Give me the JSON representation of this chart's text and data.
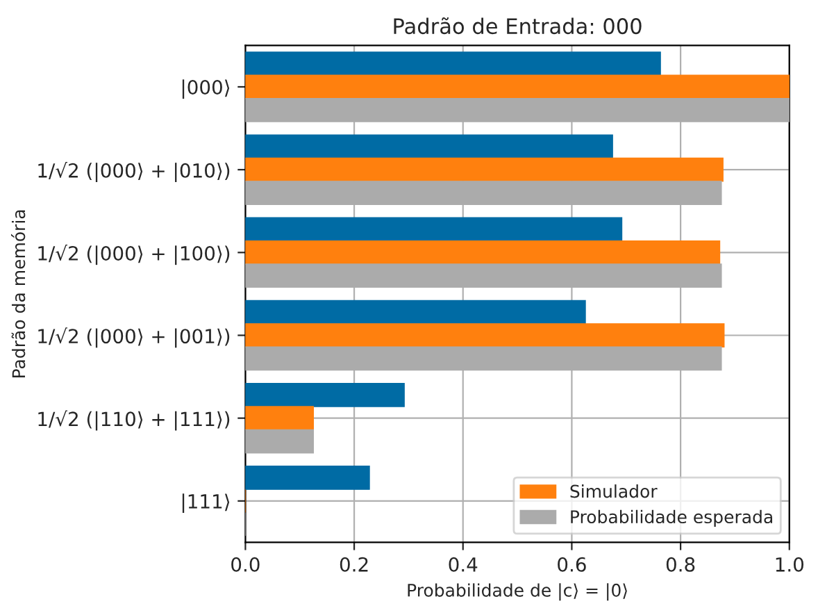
{
  "chart_data": {
    "type": "bar",
    "orientation": "horizontal",
    "title": "Padrão de Entrada: 000",
    "xlabel": "Probabilidade de |c⟩ = |0⟩",
    "ylabel": "Padrão da memória",
    "categories": [
      "|000⟩",
      "1/√2 (|000⟩ + |010⟩)",
      "1/√2 (|000⟩ + |100⟩)",
      "1/√2 (|000⟩ + |001⟩)",
      "1/√2 (|110⟩ + |111⟩)",
      "|111⟩"
    ],
    "series": [
      {
        "color": "#006ba4",
        "values": [
          0.763,
          0.675,
          0.692,
          0.625,
          0.292,
          0.228
        ]
      },
      {
        "name": "Simulador",
        "color": "#ff800e",
        "values": [
          1.0,
          0.878,
          0.872,
          0.88,
          0.125,
          0.0
        ]
      },
      {
        "name": "Probabilidade esperada",
        "color": "#ababab",
        "values": [
          1.0,
          0.875,
          0.875,
          0.875,
          0.125,
          0.0
        ]
      }
    ],
    "xlim": [
      0,
      1
    ],
    "xticks": [
      {
        "value": 0,
        "label": "0.0"
      },
      {
        "value": 0.2,
        "label": "0.2"
      },
      {
        "value": 0.4,
        "label": "0.4"
      },
      {
        "value": 0.6,
        "label": "0.6"
      },
      {
        "value": 0.8,
        "label": "0.8"
      },
      {
        "value": 1,
        "label": "1.0"
      }
    ],
    "grid": true,
    "legend": "bottom right"
  }
}
